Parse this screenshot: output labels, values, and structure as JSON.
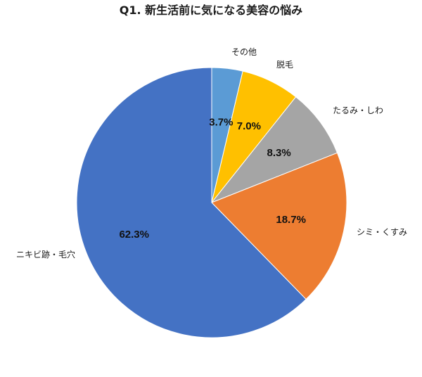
{
  "chart_data": {
    "type": "pie",
    "title": "Q1. 新生活前に気になる美容の悩み",
    "slices": [
      {
        "label": "その他",
        "value": 3.7,
        "value_label": "3.7%",
        "color": "#5B9BD5"
      },
      {
        "label": "脱毛",
        "value": 7.0,
        "value_label": "7.0%",
        "color": "#FFC000"
      },
      {
        "label": "たるみ・しわ",
        "value": 8.3,
        "value_label": "8.3%",
        "color": "#A5A5A5"
      },
      {
        "label": "シミ・くすみ",
        "value": 18.7,
        "value_label": "18.7%",
        "color": "#ED7D31"
      },
      {
        "label": "ニキビ跡・毛穴",
        "value": 62.3,
        "value_label": "62.3%",
        "color": "#4472C4"
      }
    ],
    "start": "12 o'clock",
    "direction": "clockwise"
  }
}
